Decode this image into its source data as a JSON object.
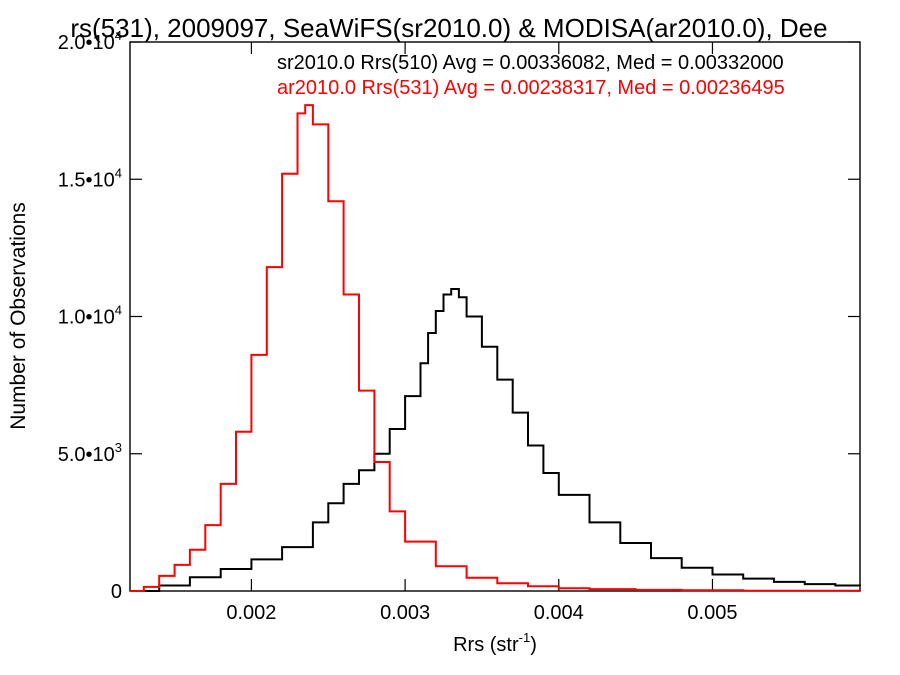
{
  "chart_data": {
    "type": "line",
    "title": "rs(531), 2009097, SeaWiFS(sr2010.0) & MODISA(ar2010.0), Dee",
    "xlabel": "Rrs (str",
    "xlabel_sup": "-1",
    "xlabel_close": ")",
    "ylabel": "Number of Observations",
    "xlim": [
      0.00121,
      0.00596
    ],
    "ylim": [
      0,
      20000
    ],
    "x_ticks": [
      {
        "value": 0.002,
        "label": "0.002"
      },
      {
        "value": 0.003,
        "label": "0.003"
      },
      {
        "value": 0.004,
        "label": "0.004"
      },
      {
        "value": 0.005,
        "label": "0.005"
      }
    ],
    "y_ticks": [
      {
        "value": 0,
        "mant": "0",
        "exp": ""
      },
      {
        "value": 5000,
        "mant": "5.0•10",
        "exp": "3"
      },
      {
        "value": 10000,
        "mant": "1.0•10",
        "exp": "4"
      },
      {
        "value": 15000,
        "mant": "1.5•10",
        "exp": "4"
      },
      {
        "value": 20000,
        "mant": "2.0•10",
        "exp": "4"
      }
    ],
    "grid": false,
    "legend_position": "top-right",
    "series": [
      {
        "name": "sr2010.0 Rrs(510) Avg = 0.00336082, Med = 0.00332000",
        "color": "#000000",
        "step": "histogram",
        "x": [
          0.00121,
          0.0014,
          0.0016,
          0.0018,
          0.002,
          0.0022,
          0.0024,
          0.0025,
          0.0026,
          0.0027,
          0.0028,
          0.0029,
          0.003,
          0.0031,
          0.00315,
          0.0032,
          0.00325,
          0.0033,
          0.00335,
          0.0034,
          0.0035,
          0.0036,
          0.0037,
          0.0038,
          0.0039,
          0.004,
          0.0042,
          0.0044,
          0.0046,
          0.0048,
          0.005,
          0.0052,
          0.0054,
          0.0056,
          0.0058,
          0.00596
        ],
        "values": [
          0,
          200,
          500,
          800,
          1150,
          1600,
          2500,
          3200,
          3900,
          4400,
          5000,
          5900,
          7100,
          8300,
          9400,
          10200,
          10800,
          11000,
          10700,
          10000,
          8900,
          7700,
          6500,
          5300,
          4300,
          3500,
          2500,
          1750,
          1200,
          850,
          600,
          450,
          330,
          250,
          200,
          180
        ]
      },
      {
        "name": "ar2010.0 Rrs(531) Avg = 0.00238317, Med = 0.00236495",
        "color": "#ff0000",
        "step": "histogram",
        "x": [
          0.00121,
          0.0013,
          0.0014,
          0.0015,
          0.0016,
          0.0017,
          0.0018,
          0.0019,
          0.002,
          0.0021,
          0.0022,
          0.0023,
          0.00235,
          0.0024,
          0.0025,
          0.0026,
          0.0027,
          0.0028,
          0.0029,
          0.003,
          0.0032,
          0.0034,
          0.0036,
          0.0038,
          0.004,
          0.0042,
          0.0045,
          0.0048,
          0.0052,
          0.00596
        ],
        "values": [
          0,
          150,
          550,
          950,
          1500,
          2400,
          3900,
          5800,
          8600,
          11800,
          15200,
          17400,
          17700,
          17000,
          14200,
          10800,
          7300,
          4700,
          2900,
          1800,
          900,
          480,
          280,
          170,
          100,
          70,
          40,
          25,
          10,
          0
        ]
      }
    ]
  }
}
